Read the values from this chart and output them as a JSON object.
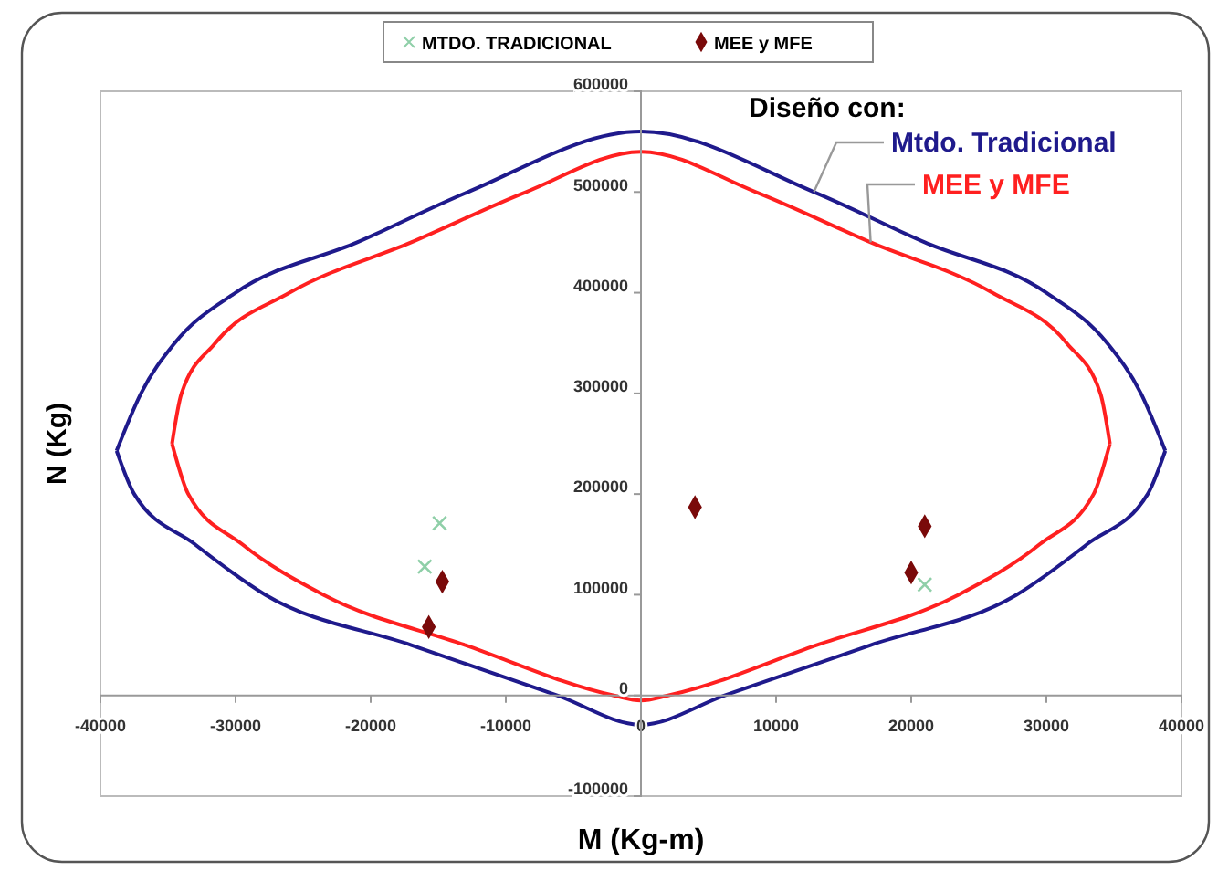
{
  "chart_data": {
    "type": "line",
    "xlabel": "M (Kg-m)",
    "ylabel": "N (Kg)",
    "xlim": [
      -40000,
      40000
    ],
    "xticks": [
      -40000,
      -30000,
      -20000,
      -10000,
      0,
      10000,
      20000,
      30000,
      40000
    ],
    "ylim": [
      -100000,
      600000
    ],
    "yticks": [
      -100000,
      0,
      100000,
      200000,
      300000,
      400000,
      500000,
      600000
    ],
    "grid": false,
    "legend": "top",
    "annotations": [
      "Diseño con:"
    ],
    "series": [
      {
        "name": "Mtdo. Tradicional",
        "color": "#1f1a8c",
        "marker": "none",
        "x": [
          -38800,
          -37000,
          -34500,
          -30000,
          -21000,
          -12800,
          0,
          12800,
          21000,
          30000,
          34500,
          37000,
          38800,
          null,
          -38800,
          -37500,
          -33000,
          -27800,
          -17000,
          -6200,
          0,
          6200,
          17000,
          27800,
          33000,
          37500,
          38800
        ],
        "values": [
          243000,
          300000,
          350000,
          400000,
          450000,
          500000,
          560000,
          500000,
          450000,
          400000,
          350000,
          300000,
          243000,
          null,
          243000,
          200000,
          150000,
          100000,
          50000,
          0,
          -29000,
          0,
          50000,
          100000,
          150000,
          200000,
          243000
        ]
      },
      {
        "name": "MEE y MFE",
        "color": "#ff2020",
        "marker": "none",
        "x": [
          -34700,
          -34000,
          -31500,
          -26000,
          -17000,
          -8500,
          0,
          8500,
          17000,
          26000,
          31500,
          34000,
          34700,
          null,
          -34700,
          -33500,
          -29500,
          -23500,
          -13000,
          -2000,
          0,
          2000,
          13000,
          23500,
          29500,
          33500,
          34700
        ],
        "values": [
          250000,
          300000,
          350000,
          400000,
          450000,
          500000,
          540000,
          500000,
          450000,
          400000,
          350000,
          300000,
          250000,
          null,
          250000,
          200000,
          150000,
          100000,
          50000,
          0,
          -5000,
          0,
          50000,
          100000,
          150000,
          200000,
          250000
        ]
      },
      {
        "name": "MTDO. TRADICIONAL",
        "type": "scatter",
        "color": "#8fcfa8",
        "marker": "cross",
        "x": [
          -14900,
          -16000,
          21000
        ],
        "values": [
          171000,
          128000,
          110000
        ]
      },
      {
        "name": "MEE y MFE",
        "type": "scatter",
        "color": "#7a0a0a",
        "marker": "diamond",
        "x": [
          -14700,
          -15700,
          4000,
          21000,
          20000
        ],
        "values": [
          113000,
          68000,
          187000,
          168000,
          122000
        ]
      }
    ]
  }
}
